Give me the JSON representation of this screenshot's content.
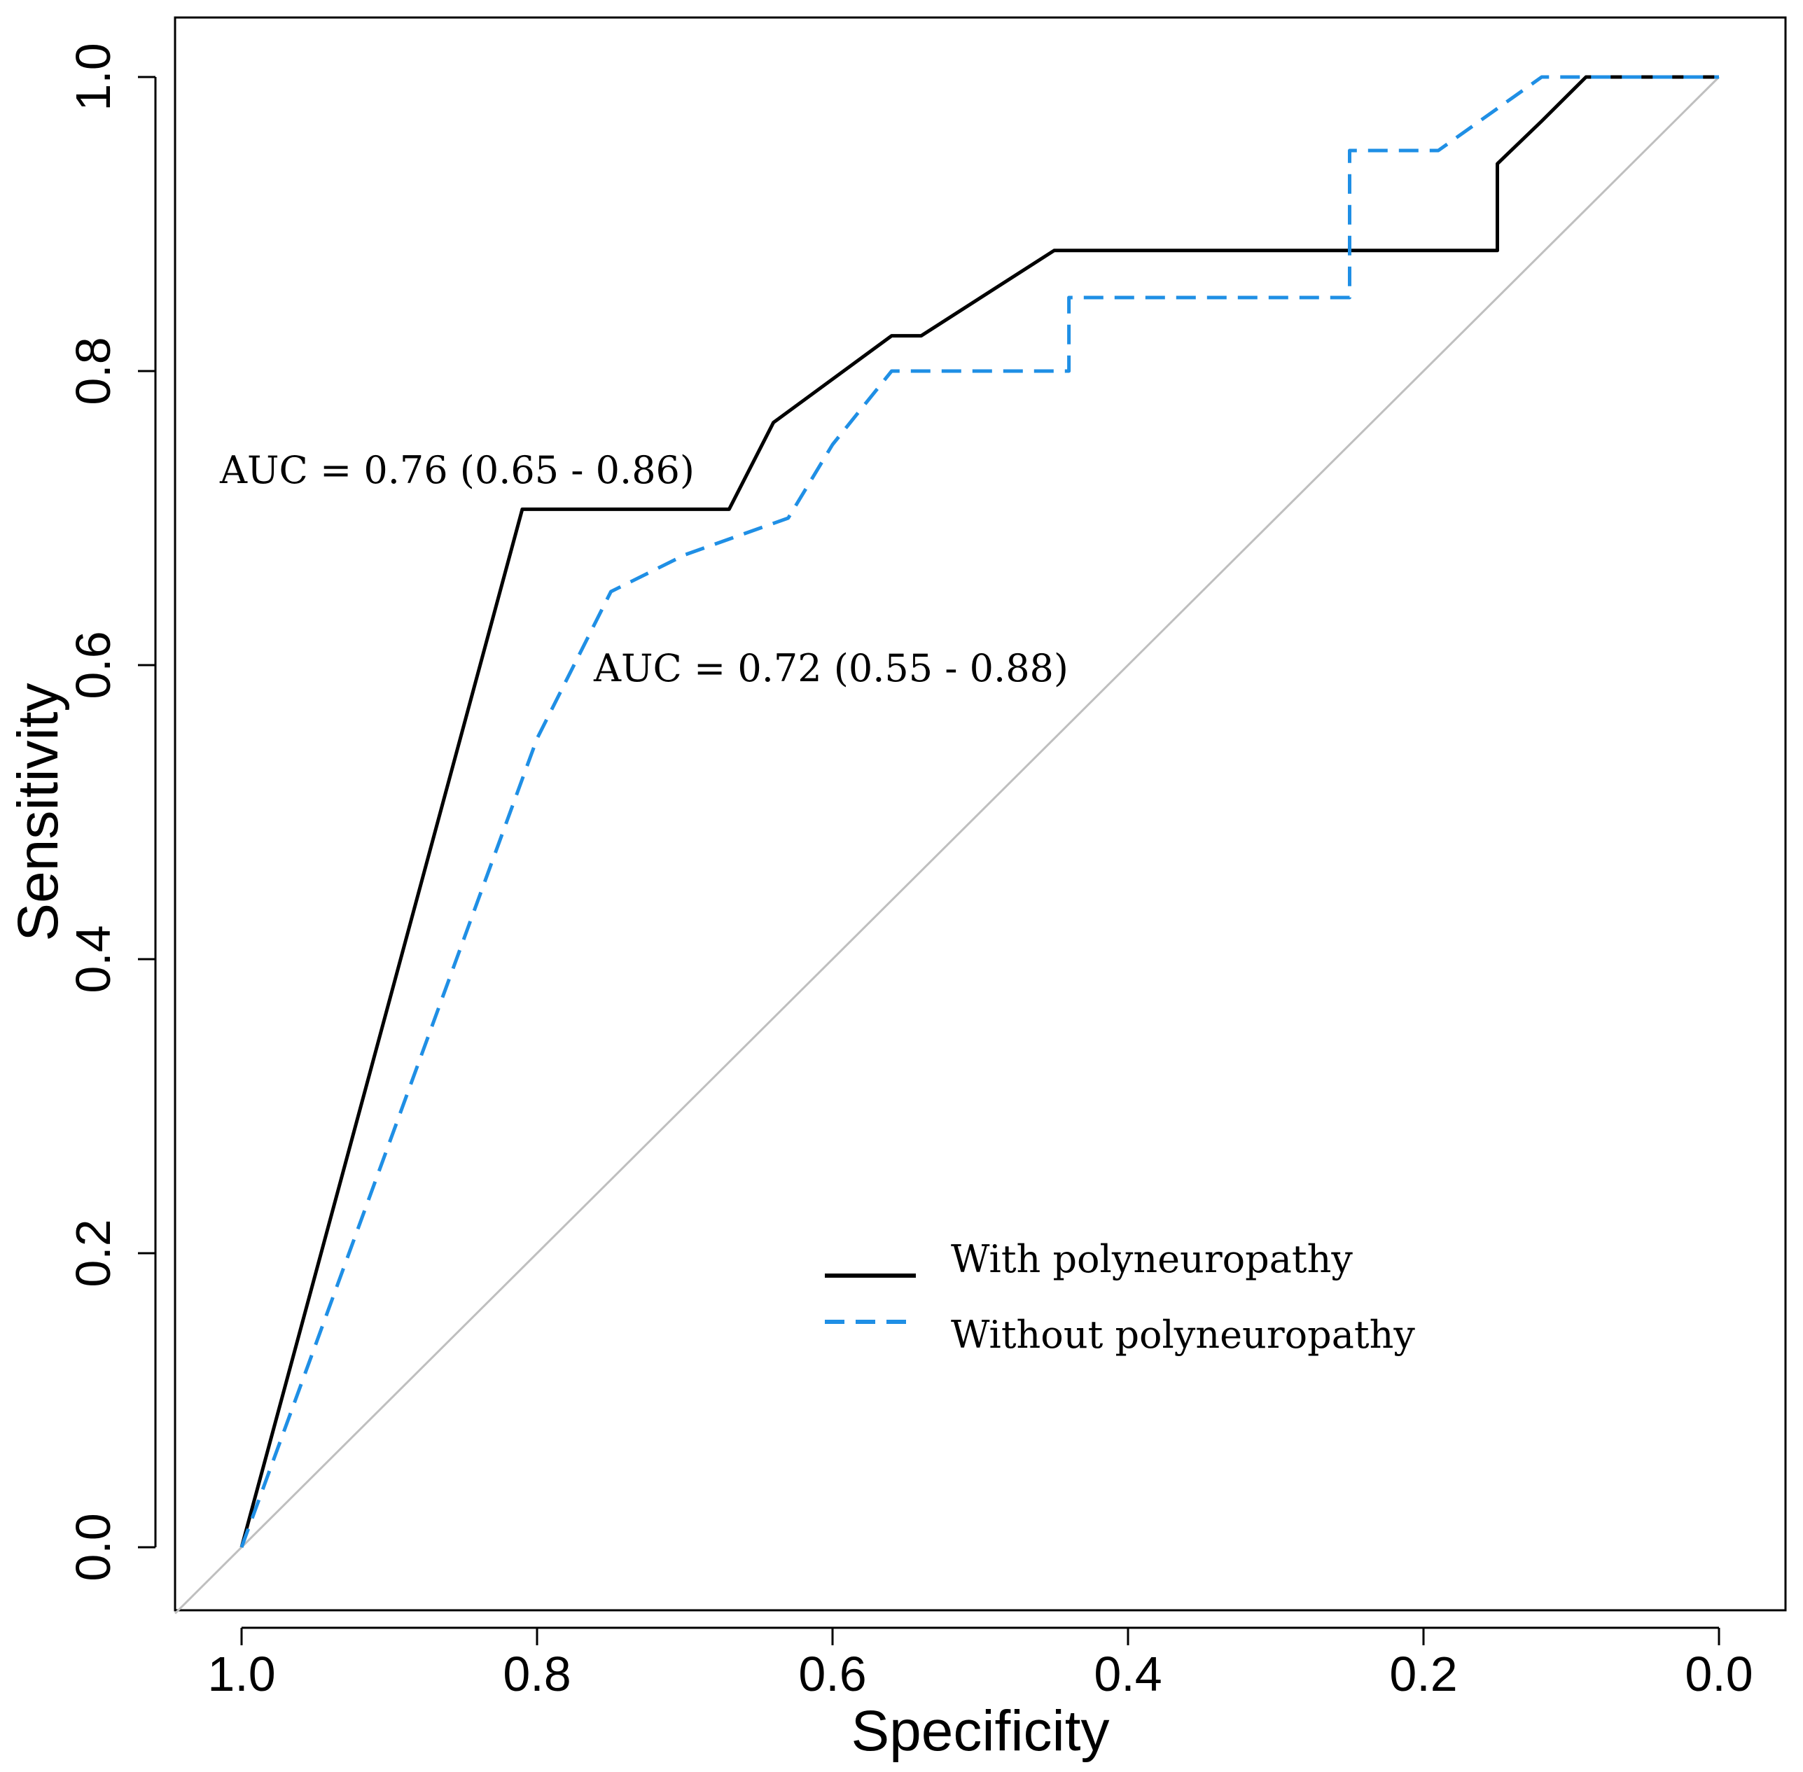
{
  "chart_data": {
    "type": "line",
    "xlabel": "Specificity",
    "ylabel": "Sensitivity",
    "xlim": [
      1.0,
      0.0
    ],
    "ylim": [
      0.0,
      1.0
    ],
    "x_reversed": true,
    "grid": false,
    "legend_position": "bottom-right",
    "x_ticks": [
      "1.0",
      "0.8",
      "0.6",
      "0.4",
      "0.2",
      "0.0"
    ],
    "y_ticks": [
      "0.0",
      "0.2",
      "0.4",
      "0.6",
      "0.8",
      "1.0"
    ],
    "series": [
      {
        "name": "With polyneuropathy",
        "color": "#000000",
        "style": "solid",
        "x": [
          1.0,
          0.81,
          0.67,
          0.64,
          0.56,
          0.54,
          0.45,
          0.15,
          0.15,
          0.12,
          0.09,
          0.0
        ],
        "y": [
          0.0,
          0.706,
          0.706,
          0.765,
          0.824,
          0.824,
          0.882,
          0.882,
          0.941,
          0.97,
          1.0,
          1.0
        ]
      },
      {
        "name": "Without polyneuropathy",
        "color": "#1f8fe5",
        "style": "dashed",
        "x": [
          1.0,
          0.8,
          0.75,
          0.7,
          0.63,
          0.6,
          0.56,
          0.44,
          0.44,
          0.25,
          0.25,
          0.19,
          0.12,
          0.0
        ],
        "y": [
          0.0,
          0.55,
          0.65,
          0.675,
          0.7,
          0.75,
          0.8,
          0.8,
          0.85,
          0.85,
          0.95,
          0.95,
          1.0,
          1.0
        ]
      }
    ],
    "reference_line": {
      "x": [
        1.0,
        0.0
      ],
      "y": [
        0.0,
        1.0
      ],
      "color": "#bfbfbf"
    },
    "annotations": [
      {
        "text": "AUC = 0.76 (0.65 - 0.86)"
      },
      {
        "text": "AUC = 0.72 (0.55 - 0.88)"
      }
    ]
  }
}
